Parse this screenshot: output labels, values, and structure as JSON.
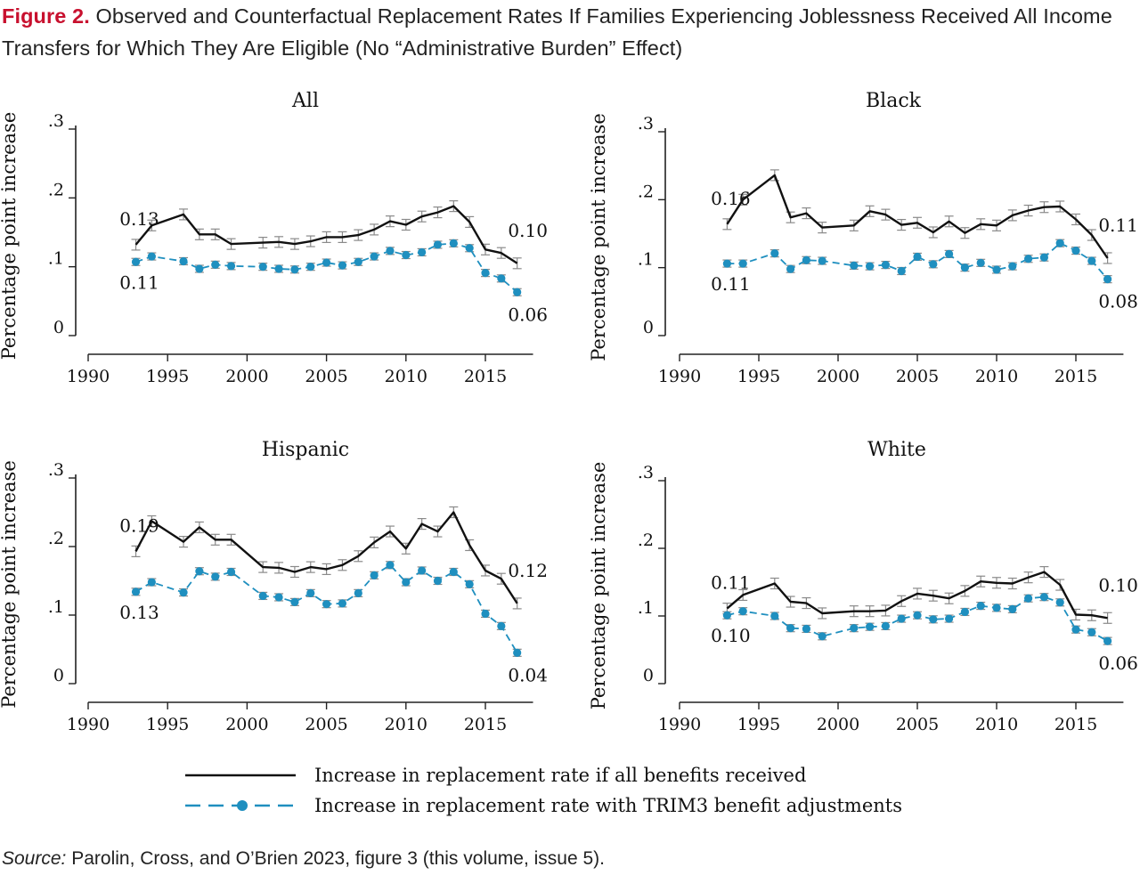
{
  "figure": {
    "label": "Figure 2.",
    "title": "Observed and Counterfactual Replacement Rates If Families Experiencing Joblessness Received All Income Transfers for Which They Are Eligible (No “Administrative Burden” Effect)",
    "source_label": "Source:",
    "source_text": "Parolin, Cross, and O’Brien 2023, figure 3 (this volume, issue 5)."
  },
  "legend": {
    "items": [
      {
        "label": "Increase in replacement rate if all benefits received",
        "color": "#111111",
        "style": "solid"
      },
      {
        "label": "Increase in replacement rate with TRIM3 benefit adjustments",
        "color": "#1f8fbf",
        "style": "dashed-dot"
      }
    ]
  },
  "colors": {
    "black_series": "#111111",
    "blue_series": "#1f8fbf",
    "error_bars": "#8a8a8a"
  },
  "chart_data": [
    {
      "type": "line",
      "title": "All",
      "ylabel": "Percentage point increase",
      "xlabel": "",
      "xlim": [
        1990,
        2018
      ],
      "ylim": [
        0,
        0.3
      ],
      "x_ticks": [
        "1990",
        "1995",
        "2000",
        "2005",
        "2010",
        "2015"
      ],
      "y_ticks": [
        "0",
        ".1",
        ".2",
        ".3"
      ],
      "grid": false,
      "series": [
        {
          "key": "all_benefits",
          "x": [
            1993,
            1994,
            1996,
            1997,
            1998,
            1999,
            2001,
            2002,
            2003,
            2004,
            2005,
            2006,
            2007,
            2008,
            2009,
            2010,
            2011,
            2012,
            2013,
            2014,
            2015,
            2016,
            2017
          ],
          "values": [
            0.132,
            0.16,
            0.176,
            0.147,
            0.147,
            0.133,
            0.135,
            0.136,
            0.133,
            0.137,
            0.143,
            0.143,
            0.146,
            0.154,
            0.166,
            0.161,
            0.173,
            0.179,
            0.188,
            0.165,
            0.125,
            0.12,
            0.105
          ]
        },
        {
          "key": "trim3",
          "x": [
            1993,
            1994,
            1996,
            1997,
            1998,
            1999,
            2001,
            2002,
            2003,
            2004,
            2005,
            2006,
            2007,
            2008,
            2009,
            2010,
            2011,
            2012,
            2013,
            2014,
            2015,
            2016,
            2017
          ],
          "values": [
            0.107,
            0.115,
            0.108,
            0.097,
            0.103,
            0.101,
            0.1,
            0.097,
            0.096,
            0.1,
            0.106,
            0.102,
            0.107,
            0.115,
            0.123,
            0.117,
            0.121,
            0.132,
            0.134,
            0.127,
            0.091,
            0.083,
            0.063
          ]
        }
      ],
      "annotations": [
        {
          "text": "0.13",
          "x": 1993,
          "y": 0.132,
          "anchor": "above"
        },
        {
          "text": "0.11",
          "x": 1993,
          "y": 0.107,
          "anchor": "below"
        },
        {
          "text": "0.10",
          "x": 2017,
          "y": 0.105,
          "anchor": "above-right"
        },
        {
          "text": "0.06",
          "x": 2017,
          "y": 0.063,
          "anchor": "below-right"
        }
      ]
    },
    {
      "type": "line",
      "title": "Black",
      "ylabel": "Percentage point increase",
      "xlabel": "",
      "xlim": [
        1990,
        2018
      ],
      "ylim": [
        0,
        0.3
      ],
      "x_ticks": [
        "1990",
        "1995",
        "2000",
        "2005",
        "2010",
        "2015"
      ],
      "y_ticks": [
        "0",
        ".1",
        ".2",
        ".3"
      ],
      "grid": false,
      "series": [
        {
          "key": "all_benefits",
          "x": [
            1993,
            1994,
            1996,
            1997,
            1998,
            1999,
            2001,
            2002,
            2003,
            2004,
            2005,
            2006,
            2007,
            2008,
            2009,
            2010,
            2011,
            2012,
            2013,
            2014,
            2015,
            2016,
            2017
          ],
          "values": [
            0.164,
            0.2,
            0.236,
            0.174,
            0.18,
            0.159,
            0.162,
            0.183,
            0.178,
            0.163,
            0.166,
            0.152,
            0.168,
            0.151,
            0.164,
            0.162,
            0.177,
            0.184,
            0.189,
            0.19,
            0.171,
            0.148,
            0.114
          ]
        },
        {
          "key": "trim3",
          "x": [
            1993,
            1994,
            1996,
            1997,
            1998,
            1999,
            2001,
            2002,
            2003,
            2004,
            2005,
            2006,
            2007,
            2008,
            2009,
            2010,
            2011,
            2012,
            2013,
            2014,
            2015,
            2016,
            2017
          ],
          "values": [
            0.106,
            0.106,
            0.121,
            0.098,
            0.111,
            0.11,
            0.103,
            0.102,
            0.104,
            0.095,
            0.116,
            0.105,
            0.12,
            0.1,
            0.107,
            0.097,
            0.102,
            0.113,
            0.115,
            0.136,
            0.125,
            0.11,
            0.083
          ]
        }
      ],
      "annotations": [
        {
          "text": "0.16",
          "x": 1993,
          "y": 0.164,
          "anchor": "above"
        },
        {
          "text": "0.11",
          "x": 1993,
          "y": 0.106,
          "anchor": "below"
        },
        {
          "text": "0.11",
          "x": 2017,
          "y": 0.114,
          "anchor": "above-right"
        },
        {
          "text": "0.08",
          "x": 2017,
          "y": 0.083,
          "anchor": "below-right"
        }
      ]
    },
    {
      "type": "line",
      "title": "Hispanic",
      "ylabel": "Percentage point increase",
      "xlabel": "",
      "xlim": [
        1990,
        2018
      ],
      "ylim": [
        0,
        0.3
      ],
      "x_ticks": [
        "1990",
        "1995",
        "2000",
        "2005",
        "2010",
        "2015"
      ],
      "y_ticks": [
        "0",
        ".1",
        ".2",
        ".3"
      ],
      "grid": false,
      "series": [
        {
          "key": "all_benefits",
          "x": [
            1993,
            1994,
            1996,
            1997,
            1998,
            1999,
            2001,
            2002,
            2003,
            2004,
            2005,
            2006,
            2007,
            2008,
            2009,
            2010,
            2011,
            2012,
            2013,
            2014,
            2015,
            2016,
            2017
          ],
          "values": [
            0.193,
            0.237,
            0.207,
            0.228,
            0.21,
            0.21,
            0.17,
            0.169,
            0.163,
            0.17,
            0.167,
            0.173,
            0.186,
            0.206,
            0.222,
            0.197,
            0.233,
            0.222,
            0.25,
            0.202,
            0.165,
            0.153,
            0.117
          ]
        },
        {
          "key": "trim3",
          "x": [
            1993,
            1994,
            1996,
            1997,
            1998,
            1999,
            2001,
            2002,
            2003,
            2004,
            2005,
            2006,
            2007,
            2008,
            2009,
            2010,
            2011,
            2012,
            2013,
            2014,
            2015,
            2016,
            2017
          ],
          "values": [
            0.134,
            0.148,
            0.133,
            0.164,
            0.156,
            0.163,
            0.128,
            0.126,
            0.119,
            0.132,
            0.116,
            0.117,
            0.132,
            0.158,
            0.173,
            0.148,
            0.165,
            0.15,
            0.163,
            0.145,
            0.102,
            0.084,
            0.045
          ]
        }
      ],
      "annotations": [
        {
          "text": "0.19",
          "x": 1993,
          "y": 0.193,
          "anchor": "above"
        },
        {
          "text": "0.13",
          "x": 1993,
          "y": 0.134,
          "anchor": "below"
        },
        {
          "text": "0.12",
          "x": 2017,
          "y": 0.117,
          "anchor": "above-right"
        },
        {
          "text": "0.04",
          "x": 2017,
          "y": 0.045,
          "anchor": "below-right"
        }
      ]
    },
    {
      "type": "line",
      "title": "White",
      "ylabel": "Percentage point increase",
      "xlabel": "",
      "xlim": [
        1990,
        2018
      ],
      "ylim": [
        0,
        0.3
      ],
      "x_ticks": [
        "1990",
        "1995",
        "2000",
        "2005",
        "2010",
        "2015"
      ],
      "y_ticks": [
        "0",
        ".1",
        ".2",
        ".3"
      ],
      "grid": false,
      "series": [
        {
          "key": "all_benefits",
          "x": [
            1993,
            1994,
            1996,
            1997,
            1998,
            1999,
            2001,
            2002,
            2003,
            2004,
            2005,
            2006,
            2007,
            2008,
            2009,
            2010,
            2011,
            2012,
            2013,
            2014,
            2015,
            2016,
            2017
          ],
          "values": [
            0.111,
            0.131,
            0.148,
            0.121,
            0.119,
            0.104,
            0.107,
            0.107,
            0.108,
            0.122,
            0.133,
            0.13,
            0.126,
            0.137,
            0.151,
            0.149,
            0.148,
            0.157,
            0.165,
            0.146,
            0.102,
            0.101,
            0.097
          ]
        },
        {
          "key": "trim3",
          "x": [
            1993,
            1994,
            1996,
            1997,
            1998,
            1999,
            2001,
            2002,
            2003,
            2004,
            2005,
            2006,
            2007,
            2008,
            2009,
            2010,
            2011,
            2012,
            2013,
            2014,
            2015,
            2016,
            2017
          ],
          "values": [
            0.101,
            0.107,
            0.1,
            0.082,
            0.081,
            0.07,
            0.082,
            0.084,
            0.085,
            0.096,
            0.101,
            0.095,
            0.096,
            0.106,
            0.115,
            0.112,
            0.11,
            0.126,
            0.128,
            0.12,
            0.08,
            0.076,
            0.063
          ]
        }
      ],
      "annotations": [
        {
          "text": "0.11",
          "x": 1993,
          "y": 0.111,
          "anchor": "above"
        },
        {
          "text": "0.10",
          "x": 1993,
          "y": 0.101,
          "anchor": "below"
        },
        {
          "text": "0.10",
          "x": 2017,
          "y": 0.097,
          "anchor": "above-right"
        },
        {
          "text": "0.06",
          "x": 2017,
          "y": 0.063,
          "anchor": "below-right"
        }
      ]
    }
  ]
}
